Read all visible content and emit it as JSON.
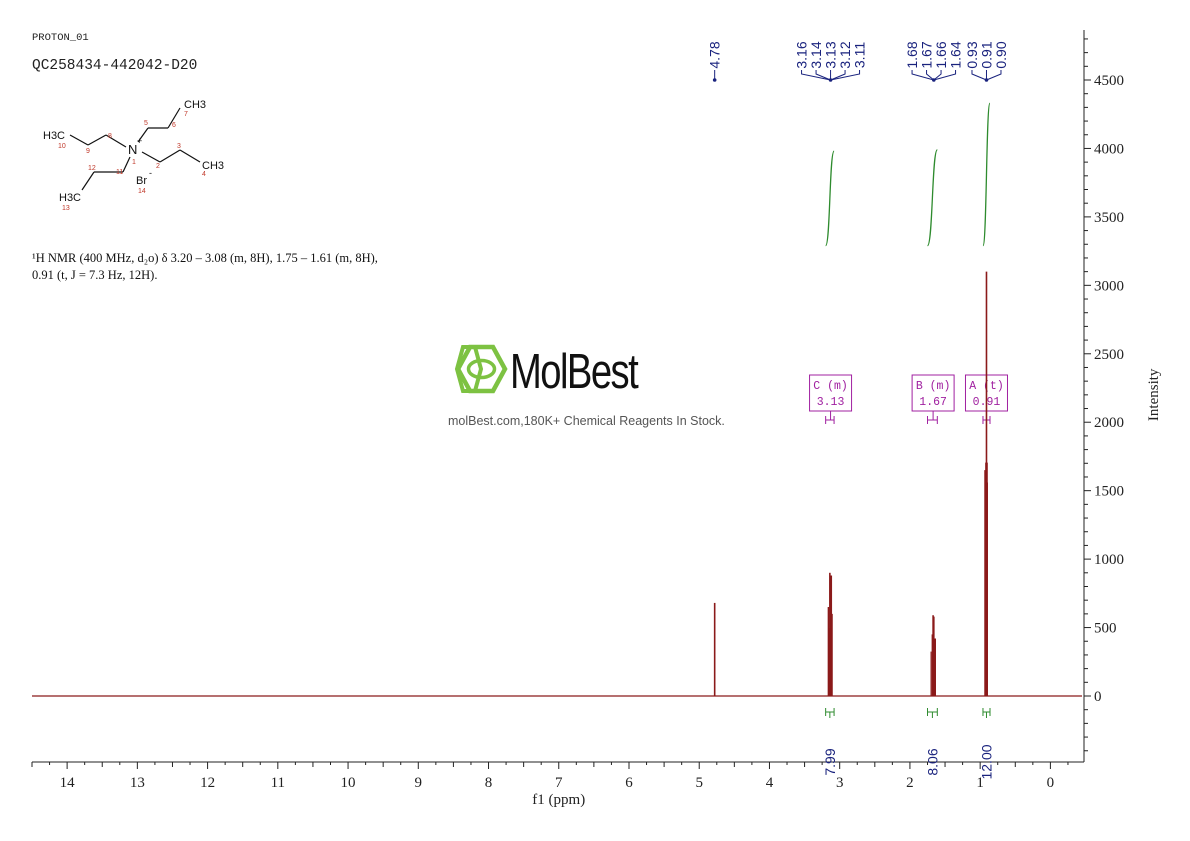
{
  "header": {
    "experiment": "PROTON_01",
    "sample_id": "QC258434-442042-D20"
  },
  "nmr_description": {
    "line1": "¹H NMR (400 MHz, d₂o) δ 3.20 – 3.08 (m, 8H), 1.75 – 1.61 (m, 8H),",
    "line2": "0.91 (t, J = 7.3 Hz, 12H)."
  },
  "watermark": {
    "brand": "MolBest",
    "tagline": "molBest.com,180K+ Chemical Reagents In Stock."
  },
  "structure": {
    "labels": [
      "CH3",
      "H3C",
      "CH3",
      "H3C",
      "N",
      "+",
      "Br",
      "-"
    ],
    "locants": [
      "1",
      "2",
      "3",
      "4",
      "5",
      "6",
      "7",
      "8",
      "9",
      "10",
      "11",
      "12",
      "13",
      "14"
    ]
  },
  "chart_data": {
    "type": "line",
    "xlabel": "f1 (ppm)",
    "ylabel": "Intensity",
    "xlim": [
      14.5,
      -0.45
    ],
    "ylim": [
      -470,
      4870
    ],
    "x_ticks": [
      14,
      13,
      12,
      11,
      10,
      9,
      8,
      7,
      6,
      5,
      4,
      3,
      2,
      1,
      0
    ],
    "y_ticks": [
      0,
      500,
      1000,
      1500,
      2000,
      2500,
      3000,
      3500,
      4000,
      4500
    ],
    "peaks": [
      {
        "ppm": 4.78,
        "height": 680
      },
      {
        "ppm": 3.16,
        "height": 650
      },
      {
        "ppm": 3.14,
        "height": 900
      },
      {
        "ppm": 3.13,
        "height": 830
      },
      {
        "ppm": 3.12,
        "height": 880
      },
      {
        "ppm": 3.11,
        "height": 600
      },
      {
        "ppm": 1.68,
        "height": 450
      },
      {
        "ppm": 1.67,
        "height": 590
      },
      {
        "ppm": 1.66,
        "height": 580
      },
      {
        "ppm": 1.64,
        "height": 420
      },
      {
        "ppm": 0.93,
        "height": 1650
      },
      {
        "ppm": 0.91,
        "height": 3100
      },
      {
        "ppm": 0.9,
        "height": 1560
      }
    ],
    "peak_labels": {
      "groups": [
        {
          "anchor": 4.78,
          "labels": [
            "4.78"
          ]
        },
        {
          "anchor": 3.13,
          "labels": [
            "3.16",
            "3.14",
            "3.13",
            "3.12",
            "3.11"
          ]
        },
        {
          "anchor": 1.66,
          "labels": [
            "1.68",
            "1.67",
            "1.66",
            "1.64"
          ]
        },
        {
          "anchor": 0.91,
          "labels": [
            "0.93",
            "0.91",
            "0.90"
          ]
        }
      ]
    },
    "multiplets": [
      {
        "letter": "C",
        "type": "(m)",
        "shift": "3.13",
        "from": 3.2,
        "to": 3.08
      },
      {
        "letter": "B",
        "type": "(m)",
        "shift": "1.67",
        "from": 1.75,
        "to": 1.61
      },
      {
        "letter": "A",
        "type": "(t)",
        "shift": "0.91",
        "from": 0.96,
        "to": 0.86
      }
    ],
    "integrals": [
      {
        "from": 3.2,
        "to": 3.08,
        "value": "7.99",
        "curve_start": 3290,
        "curve_end": 3980
      },
      {
        "from": 1.75,
        "to": 1.61,
        "value": "8.06",
        "curve_start": 3290,
        "curve_end": 3990
      },
      {
        "from": 0.96,
        "to": 0.86,
        "value": "12.00",
        "curve_start": 3290,
        "curve_end": 4330
      }
    ],
    "colors": {
      "spectrum": "#8b1a1a",
      "peak_label": "#1a237e",
      "integral": "#2e8b2e",
      "multiplet": "#a020a0",
      "axis": "#222222",
      "watermark_green": "#7dc242"
    }
  }
}
